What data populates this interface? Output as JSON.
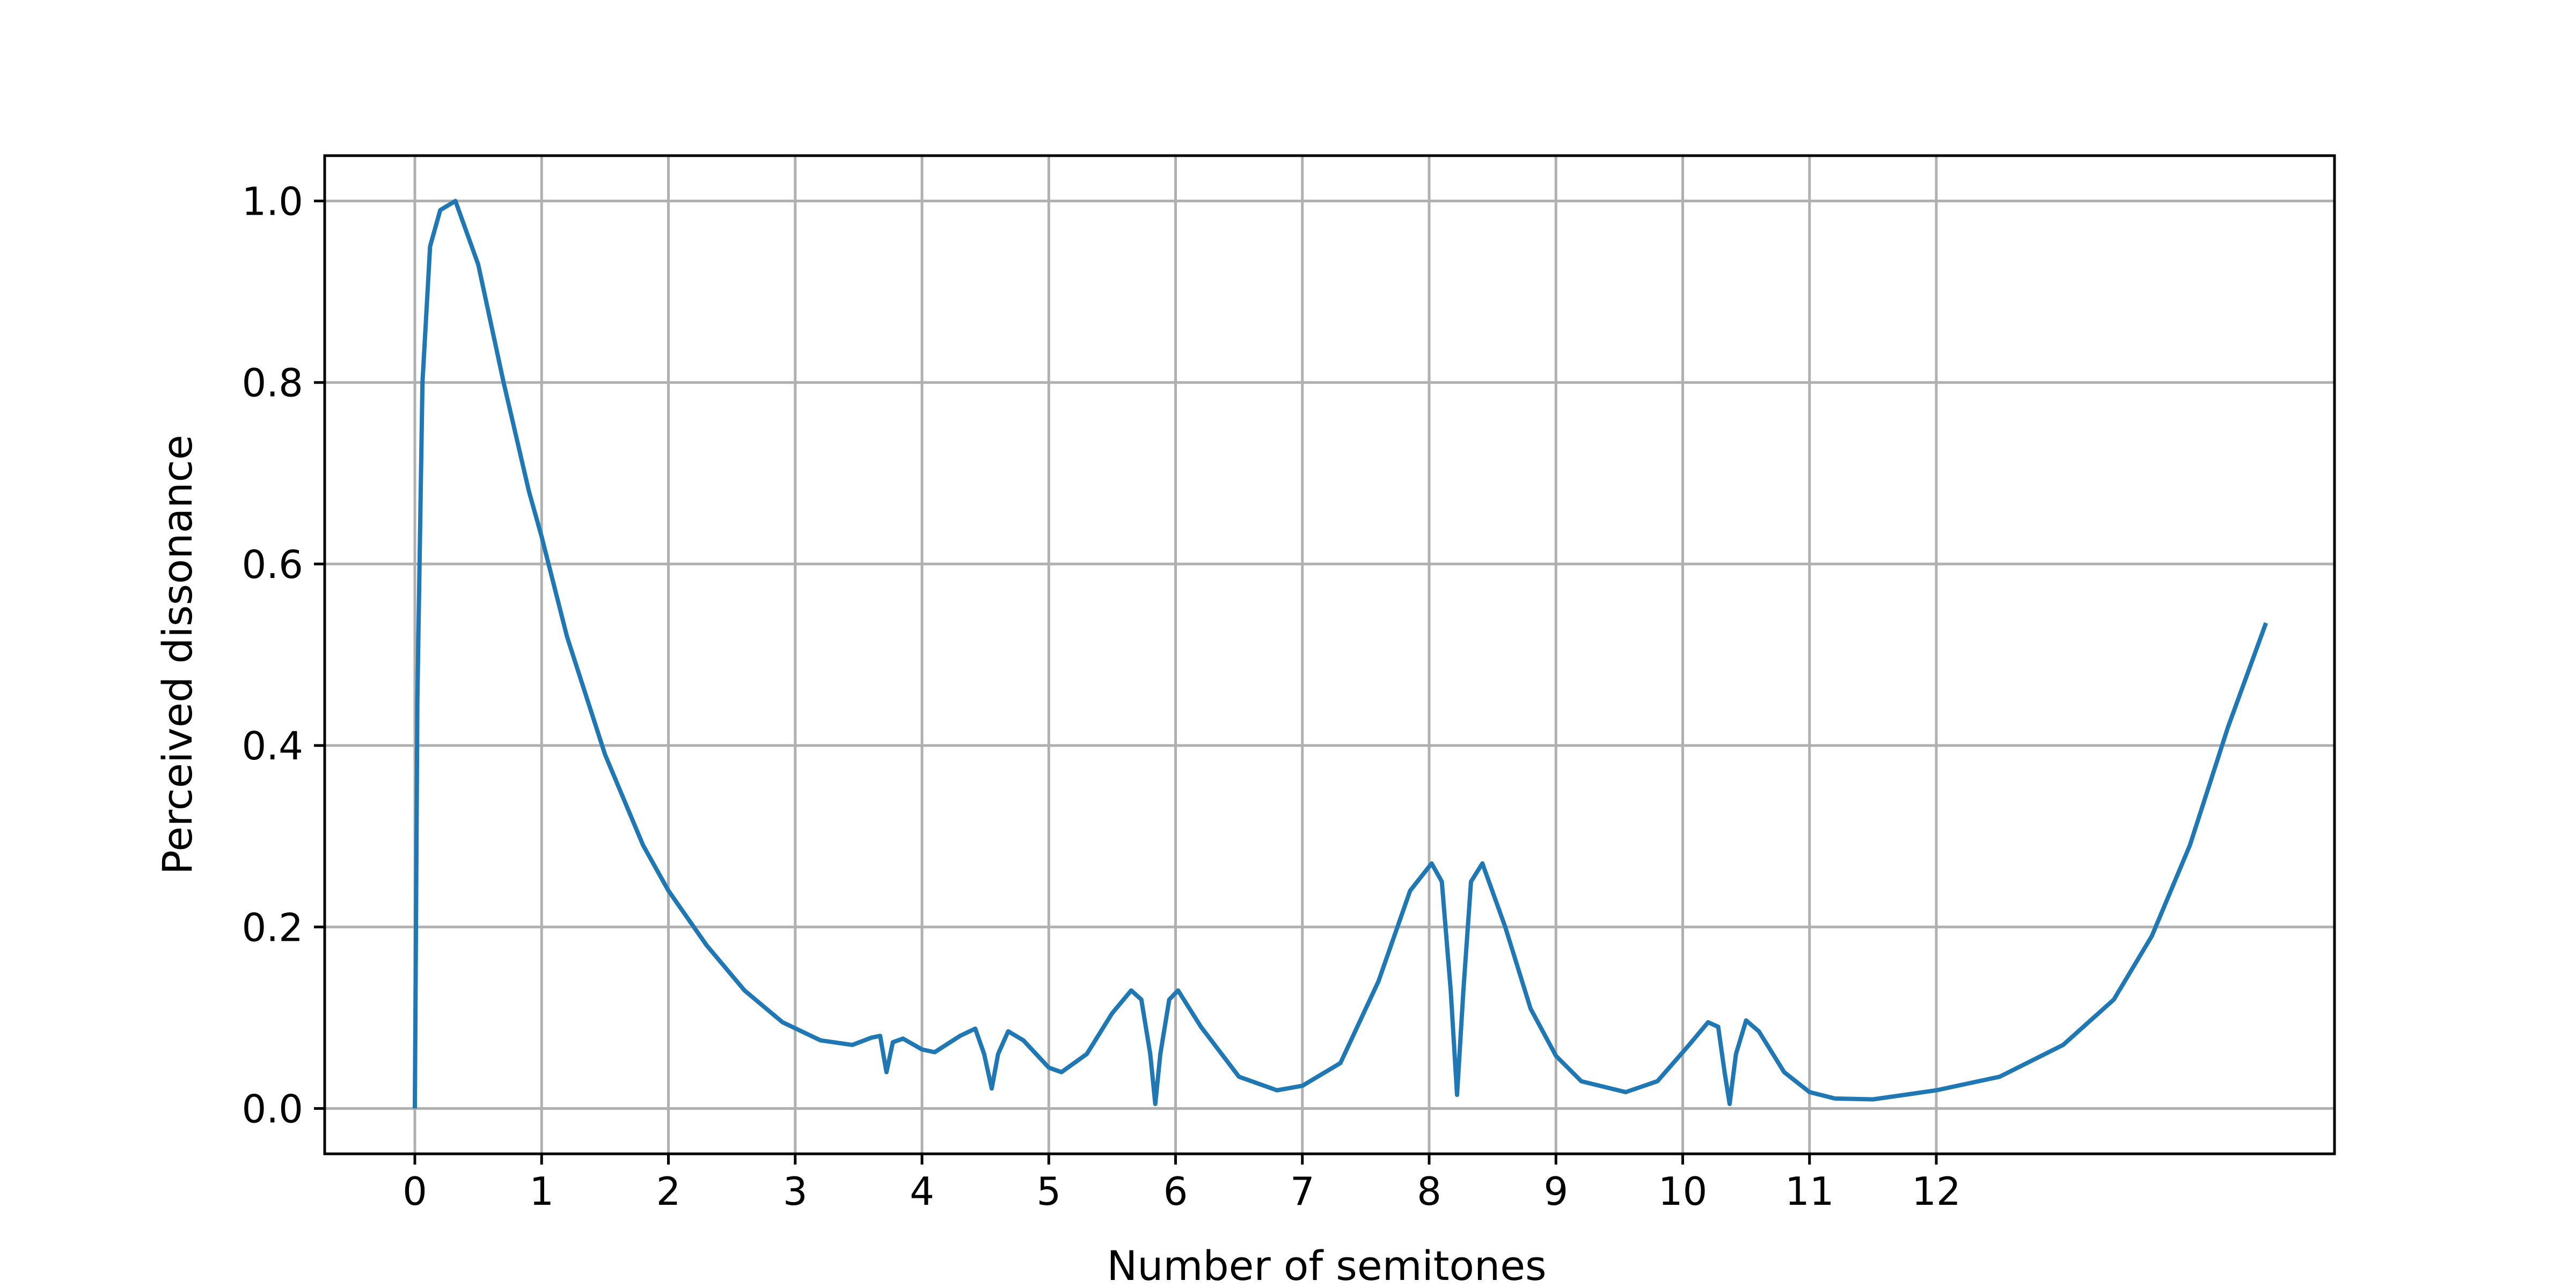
{
  "chart_data": {
    "type": "line",
    "title": "",
    "xlabel": "Number of semitones",
    "ylabel": "Perceived dissonance",
    "grid": true,
    "x_ticks": [
      0,
      1,
      2,
      3,
      4,
      5,
      6,
      7,
      8,
      9,
      10,
      11,
      12
    ],
    "x_tick_labels": [
      "0",
      "1",
      "2",
      "3",
      "4",
      "5",
      "6",
      "7",
      "8",
      "9",
      "10",
      "11",
      "12"
    ],
    "y_ticks": [
      0.0,
      0.2,
      0.4,
      0.6,
      0.8,
      1.0
    ],
    "y_tick_labels": [
      "0.0",
      "0.2",
      "0.4",
      "0.6",
      "0.8",
      "1.0"
    ],
    "ylim": [
      -0.05,
      1.05
    ],
    "line_color": "#1f77b4",
    "series": [
      {
        "name": "",
        "points": [
          [
            0.0,
            0.0
          ],
          [
            0.02,
            0.45
          ],
          [
            0.06,
            0.8
          ],
          [
            0.12,
            0.95
          ],
          [
            0.2,
            0.99
          ],
          [
            0.32,
            1.0
          ],
          [
            0.5,
            0.93
          ],
          [
            0.7,
            0.8
          ],
          [
            0.9,
            0.68
          ],
          [
            1.0,
            0.63
          ],
          [
            1.2,
            0.52
          ],
          [
            1.5,
            0.39
          ],
          [
            1.8,
            0.29
          ],
          [
            2.0,
            0.24
          ],
          [
            2.3,
            0.18
          ],
          [
            2.6,
            0.13
          ],
          [
            2.9,
            0.095
          ],
          [
            3.2,
            0.075
          ],
          [
            3.45,
            0.07
          ],
          [
            3.6,
            0.078
          ],
          [
            3.67,
            0.08
          ],
          [
            3.72,
            0.04
          ],
          [
            3.77,
            0.073
          ],
          [
            3.85,
            0.077
          ],
          [
            4.0,
            0.065
          ],
          [
            4.1,
            0.062
          ],
          [
            4.3,
            0.08
          ],
          [
            4.42,
            0.088
          ],
          [
            4.49,
            0.06
          ],
          [
            4.55,
            0.022
          ],
          [
            4.6,
            0.06
          ],
          [
            4.68,
            0.085
          ],
          [
            4.8,
            0.075
          ],
          [
            5.0,
            0.045
          ],
          [
            5.1,
            0.04
          ],
          [
            5.3,
            0.06
          ],
          [
            5.5,
            0.105
          ],
          [
            5.65,
            0.13
          ],
          [
            5.73,
            0.12
          ],
          [
            5.8,
            0.06
          ],
          [
            5.84,
            0.005
          ],
          [
            5.88,
            0.06
          ],
          [
            5.95,
            0.12
          ],
          [
            6.02,
            0.13
          ],
          [
            6.2,
            0.09
          ],
          [
            6.5,
            0.035
          ],
          [
            6.8,
            0.02
          ],
          [
            7.0,
            0.025
          ],
          [
            7.3,
            0.05
          ],
          [
            7.6,
            0.14
          ],
          [
            7.85,
            0.24
          ],
          [
            8.02,
            0.27
          ],
          [
            8.1,
            0.25
          ],
          [
            8.17,
            0.13
          ],
          [
            8.22,
            0.015
          ],
          [
            8.27,
            0.13
          ],
          [
            8.33,
            0.25
          ],
          [
            8.42,
            0.27
          ],
          [
            8.6,
            0.2
          ],
          [
            8.8,
            0.11
          ],
          [
            9.0,
            0.058
          ],
          [
            9.2,
            0.03
          ],
          [
            9.55,
            0.018
          ],
          [
            9.8,
            0.03
          ],
          [
            10.05,
            0.07
          ],
          [
            10.2,
            0.095
          ],
          [
            10.28,
            0.09
          ],
          [
            10.33,
            0.04
          ],
          [
            10.37,
            0.005
          ],
          [
            10.42,
            0.06
          ],
          [
            10.5,
            0.097
          ],
          [
            10.6,
            0.085
          ],
          [
            10.8,
            0.04
          ],
          [
            11.0,
            0.018
          ],
          [
            11.2,
            0.011
          ],
          [
            11.5,
            0.01
          ],
          [
            12.0,
            0.02
          ],
          [
            12.5,
            0.035
          ],
          [
            13.0,
            0.07
          ],
          [
            13.4,
            0.12
          ],
          [
            13.7,
            0.19
          ],
          [
            14.0,
            0.29
          ],
          [
            14.3,
            0.42
          ],
          [
            14.6,
            0.535
          ]
        ]
      }
    ]
  }
}
